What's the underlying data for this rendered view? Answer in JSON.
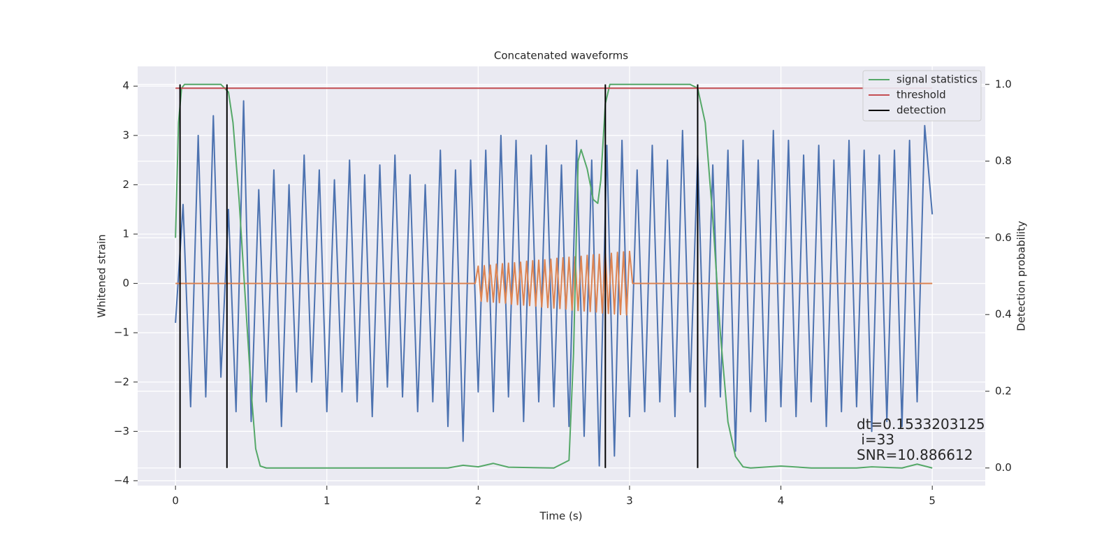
{
  "chart_data": {
    "type": "line",
    "title": "Concatenated waveforms",
    "xlabel": "Time (s)",
    "ylabel": "Whitened strain",
    "y2label": "Detection probability",
    "annotation": "dt=0.1533203125\n i=33\nSNR=10.886612",
    "xlim": [
      -0.25,
      5.35
    ],
    "ylim": [
      -4.1,
      4.4
    ],
    "y2lim": [
      -0.046,
      1.047
    ],
    "xticks": [
      0,
      1,
      2,
      3,
      4,
      5
    ],
    "yticks": [
      {
        "value": -4,
        "label": "−4"
      },
      {
        "value": -3,
        "label": "−3"
      },
      {
        "value": -2,
        "label": "−2"
      },
      {
        "value": -1,
        "label": "−1"
      },
      0,
      1,
      2,
      3,
      4
    ],
    "y2ticks": [
      {
        "value": 0,
        "label": "0.0"
      },
      0.2,
      0.4,
      0.6,
      0.8,
      {
        "value": 1,
        "label": "1.0"
      }
    ],
    "grid": true,
    "legend": "upper right",
    "series": [
      {
        "color": "#4c72b0",
        "x": [
          0,
          0.05,
          0.1,
          0.15,
          0.2,
          0.25,
          0.3,
          0.35,
          0.4,
          0.45,
          0.5,
          0.55,
          0.6,
          0.65,
          0.7,
          0.75,
          0.8,
          0.85,
          0.9,
          0.95,
          1,
          1.05,
          1.1,
          1.15,
          1.2,
          1.25,
          1.3,
          1.35,
          1.4,
          1.45,
          1.5,
          1.55,
          1.6,
          1.65,
          1.7,
          1.75,
          1.8,
          1.85,
          1.9,
          1.95,
          2,
          2.05,
          2.1,
          2.15,
          2.2,
          2.25,
          2.3,
          2.35,
          2.4,
          2.45,
          2.5,
          2.55,
          2.6,
          2.65,
          2.7,
          2.75,
          2.8,
          2.85,
          2.9,
          2.95,
          3,
          3.05,
          3.1,
          3.15,
          3.2,
          3.25,
          3.3,
          3.35,
          3.4,
          3.45,
          3.5,
          3.55,
          3.6,
          3.65,
          3.7,
          3.75,
          3.8,
          3.85,
          3.9,
          3.95,
          4,
          4.05,
          4.1,
          4.15,
          4.2,
          4.25,
          4.3,
          4.35,
          4.4,
          4.45,
          4.5,
          4.55,
          4.6,
          4.65,
          4.7,
          4.75,
          4.8,
          4.85,
          4.9,
          4.95,
          5
        ],
        "values": [
          -0.8,
          1.6,
          -2.5,
          3.0,
          -2.3,
          3.4,
          -1.9,
          1.5,
          -2.6,
          3.7,
          -2.8,
          1.9,
          -2.4,
          2.3,
          -2.9,
          2.0,
          -2.2,
          2.6,
          -2.0,
          2.3,
          -2.6,
          2.1,
          -2.2,
          2.5,
          -2.4,
          2.2,
          -2.7,
          2.4,
          -2.1,
          2.6,
          -2.3,
          2.2,
          -2.6,
          2.0,
          -2.4,
          2.7,
          -2.9,
          2.3,
          -3.2,
          2.5,
          -2.2,
          2.7,
          -2.6,
          3.0,
          -2.3,
          2.9,
          -2.8,
          2.6,
          -2.4,
          2.8,
          -2.5,
          2.4,
          -2.9,
          2.9,
          -3.1,
          2.5,
          -3.7,
          2.8,
          -3.5,
          2.9,
          -2.7,
          2.3,
          -2.6,
          2.8,
          -2.4,
          2.5,
          -2.7,
          3.1,
          -2.2,
          2.6,
          -2.5,
          2.4,
          -2.3,
          2.7,
          -3.4,
          2.9,
          -2.6,
          2.5,
          -2.8,
          3.1,
          -2.5,
          2.9,
          -2.7,
          2.6,
          -2.4,
          2.8,
          -2.9,
          2.5,
          -2.6,
          2.9,
          -2.5,
          2.7,
          -3.0,
          2.6,
          -2.8,
          2.7,
          -2.9,
          2.9,
          -2.4,
          3.2,
          1.4
        ]
      },
      {
        "color": "#dd8452",
        "x": [
          0,
          1.98,
          2,
          2.02,
          2.04,
          2.06,
          2.08,
          2.1,
          2.12,
          2.14,
          2.16,
          2.18,
          2.2,
          2.22,
          2.24,
          2.26,
          2.28,
          2.3,
          2.32,
          2.34,
          2.36,
          2.38,
          2.4,
          2.42,
          2.44,
          2.46,
          2.48,
          2.5,
          2.52,
          2.54,
          2.56,
          2.58,
          2.6,
          2.62,
          2.64,
          2.66,
          2.68,
          2.7,
          2.72,
          2.74,
          2.76,
          2.78,
          2.8,
          2.82,
          2.84,
          2.86,
          2.88,
          2.9,
          2.92,
          2.94,
          2.96,
          2.98,
          3,
          3.02,
          5
        ],
        "values": [
          0,
          0,
          0.35,
          -0.36,
          0.36,
          -0.37,
          0.37,
          -0.38,
          0.39,
          -0.39,
          0.4,
          -0.4,
          0.41,
          -0.42,
          0.42,
          -0.43,
          0.43,
          -0.44,
          0.45,
          -0.45,
          0.46,
          -0.46,
          0.47,
          -0.48,
          0.48,
          -0.49,
          0.49,
          -0.5,
          0.51,
          -0.51,
          0.52,
          -0.52,
          0.53,
          -0.54,
          0.54,
          -0.55,
          0.55,
          -0.56,
          0.57,
          -0.57,
          0.58,
          -0.58,
          0.59,
          -0.6,
          0.6,
          -0.61,
          0.61,
          -0.62,
          0.63,
          -0.63,
          0.64,
          -0.64,
          0.65,
          0,
          0
        ]
      },
      {
        "name": "signal statistics",
        "color": "#55a868",
        "axis": "y2",
        "x": [
          0,
          0.02,
          0.04,
          0.06,
          0.3,
          0.35,
          0.38,
          0.42,
          0.46,
          0.5,
          0.53,
          0.56,
          0.6,
          1,
          1.5,
          1.8,
          1.9,
          2,
          2.1,
          2.2,
          2.5,
          2.6,
          2.63,
          2.66,
          2.68,
          2.72,
          2.76,
          2.79,
          2.81,
          2.84,
          2.87,
          3.4,
          3.45,
          3.5,
          3.55,
          3.6,
          3.65,
          3.7,
          3.75,
          3.8,
          4,
          4.2,
          4.5,
          4.6,
          4.8,
          4.9,
          5
        ],
        "values": [
          0.6,
          0.9,
          0.99,
          1,
          1,
          0.98,
          0.9,
          0.7,
          0.45,
          0.2,
          0.05,
          0.005,
          0,
          0,
          0,
          0,
          0.007,
          0.003,
          0.012,
          0.002,
          0,
          0.02,
          0.3,
          0.8,
          0.83,
          0.78,
          0.7,
          0.69,
          0.75,
          0.95,
          1,
          1,
          0.99,
          0.9,
          0.65,
          0.35,
          0.12,
          0.03,
          0.003,
          0,
          0.005,
          0,
          0,
          0.003,
          0,
          0.01,
          0
        ]
      },
      {
        "name": "threshold",
        "color": "#c44e52",
        "axis": "y2",
        "x": [
          0,
          5
        ],
        "values": [
          0.99,
          0.99
        ]
      },
      {
        "name": "detection",
        "color": "#000000",
        "axis": "y2",
        "kind": "vlines",
        "x": [
          0.03,
          0.34,
          2.84,
          3.45
        ],
        "ymin": 0,
        "ymax": 1
      }
    ]
  }
}
